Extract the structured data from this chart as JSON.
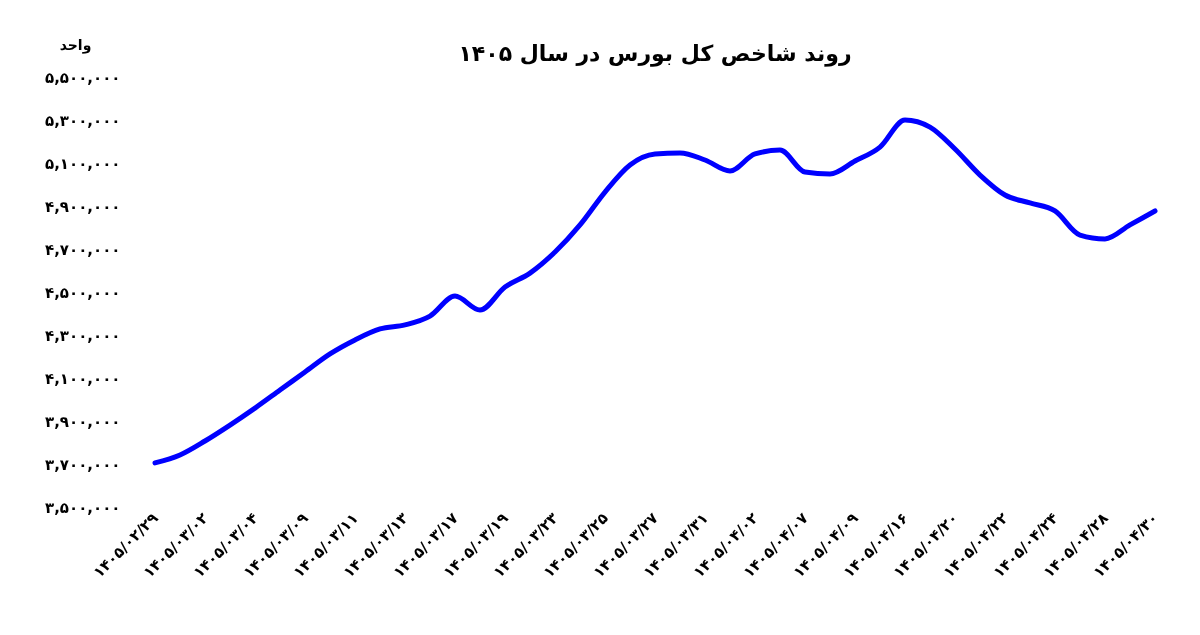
{
  "chart_data": {
    "type": "line",
    "title": "روند شاخص کل بورس در سال ۱۴۰۵",
    "ylabel": "واحد",
    "categories": [
      "۱۴۰۵/۰۲/۲۹",
      null,
      "۱۴۰۵/۰۳/۰۲",
      null,
      "۱۴۰۵/۰۳/۰۴",
      null,
      "۱۴۰۵/۰۳/۰۹",
      null,
      "۱۴۰۵/۰۳/۱۱",
      null,
      "۱۴۰۵/۰۳/۱۳",
      null,
      "۱۴۰۵/۰۳/۱۷",
      null,
      "۱۴۰۵/۰۳/۱۹",
      null,
      "۱۴۰۵/۰۳/۲۳",
      null,
      "۱۴۰۵/۰۳/۲۵",
      null,
      "۱۴۰۵/۰۳/۲۷",
      null,
      "۱۴۰۵/۰۳/۳۱",
      null,
      "۱۴۰۵/۰۴/۰۲",
      null,
      "۱۴۰۵/۰۴/۰۷",
      null,
      "۱۴۰۵/۰۴/۰۹",
      null,
      "۱۴۰۵/۰۴/۱۶",
      null,
      "۱۴۰۵/۰۴/۲۰",
      null,
      "۱۴۰۵/۰۴/۲۲",
      null,
      "۱۴۰۵/۰۴/۲۴",
      null,
      "۱۴۰۵/۰۴/۲۸",
      null,
      "۱۴۰۵/۰۴/۳۰"
    ],
    "series": [
      {
        "color": "#0000ff",
        "values": [
          3705000,
          3742000,
          3807000,
          3881000,
          3960000,
          4044000,
          4128000,
          4212000,
          4277000,
          4328000,
          4347000,
          4388000,
          4481000,
          4416000,
          4523000,
          4588000,
          4686000,
          4812000,
          4965000,
          5091000,
          5142000,
          5147000,
          5114000,
          5063000,
          5142000,
          5160000,
          5058000,
          5049000,
          5109000,
          5174000,
          5300000,
          5267000,
          5165000,
          5044000,
          4951000,
          4914000,
          4877000,
          4765000,
          4747000,
          4812000,
          4877000
        ]
      }
    ],
    "ylim": [
      3500000,
      5500000
    ],
    "yticks": [
      {
        "value": 3500000,
        "label": "۳,۵۰۰,۰۰۰"
      },
      {
        "value": 3700000,
        "label": "۳,۷۰۰,۰۰۰"
      },
      {
        "value": 3900000,
        "label": "۳,۹۰۰,۰۰۰"
      },
      {
        "value": 4100000,
        "label": "۴,۱۰۰,۰۰۰"
      },
      {
        "value": 4300000,
        "label": "۴,۳۰۰,۰۰۰"
      },
      {
        "value": 4500000,
        "label": "۴,۵۰۰,۰۰۰"
      },
      {
        "value": 4700000,
        "label": "۴,۷۰۰,۰۰۰"
      },
      {
        "value": 4900000,
        "label": "۴,۹۰۰,۰۰۰"
      },
      {
        "value": 5100000,
        "label": "۵,۱۰۰,۰۰۰"
      },
      {
        "value": 5300000,
        "label": "۵,۳۰۰,۰۰۰"
      },
      {
        "value": 5500000,
        "label": "۵,۵۰۰,۰۰۰"
      }
    ],
    "grid": false,
    "marker": "none",
    "line_style": "solid"
  }
}
